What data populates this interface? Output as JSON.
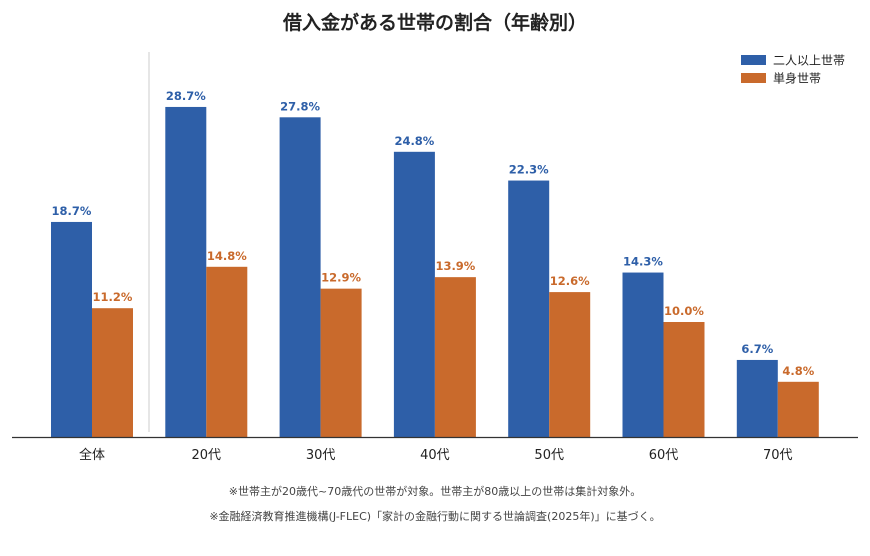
{
  "chart_data": {
    "type": "bar",
    "title": "借入金がある世帯の割合（年齢別）",
    "categories": [
      "全体",
      "20代",
      "30代",
      "40代",
      "50代",
      "60代",
      "70代"
    ],
    "series": [
      {
        "name": "二人以上世帯",
        "values": [
          18.7,
          28.7,
          27.8,
          24.8,
          22.3,
          14.3,
          6.7
        ],
        "color": "#2e5fa8"
      },
      {
        "name": "単身世帯",
        "values": [
          11.2,
          14.8,
          12.9,
          13.9,
          12.6,
          10.0,
          4.8
        ],
        "color": "#c96a2c"
      }
    ],
    "value_suffix": "%",
    "ylim": [
      0,
      30
    ],
    "xlabel": "",
    "ylabel": "",
    "grid": false,
    "legend_position": "top-right",
    "separator_after_first_category": true
  },
  "notes": [
    "※世帯主が20歳代~70歳代の世帯が対象。世帯主が80歳以上の世帯は集計対象外。",
    "※金融経済教育推進機構(J-FLEC)「家計の金融行動に関する世論調査(2025年)」に基づく。"
  ]
}
